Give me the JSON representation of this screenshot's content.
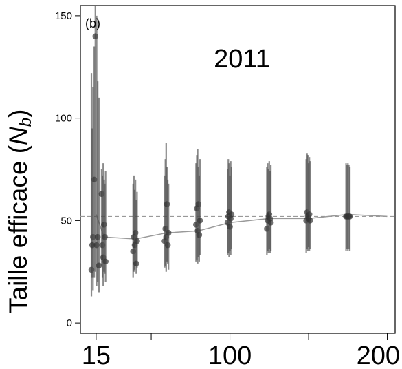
{
  "chart_data": {
    "type": "scatter",
    "panel_label": "(b)",
    "annotation": "2011",
    "ylabel": {
      "prefix": "Taille efficace (",
      "symbol": "N",
      "subscript": "b",
      "suffix": ")"
    },
    "xlim": [
      5,
      205
    ],
    "ylim": [
      -5,
      155
    ],
    "x_ticks": [
      15,
      50,
      100,
      150,
      200
    ],
    "x_tick_labels": [
      "15",
      "",
      "100",
      "",
      "200"
    ],
    "y_ticks": [
      0,
      50,
      100,
      150
    ],
    "y_tick_labels": [
      "0",
      "50",
      "100",
      "150"
    ],
    "reference_line": 52,
    "mean_line": {
      "x": [
        15,
        20,
        40,
        60,
        80,
        100,
        125,
        150,
        175,
        200
      ],
      "y": [
        53,
        42,
        41,
        44,
        45,
        49,
        51,
        51,
        53,
        52
      ]
    },
    "groups": [
      {
        "x": 15,
        "points": [
          {
            "dx": -3.0,
            "y": 26,
            "lo": 13,
            "hi": 122
          },
          {
            "dx": -2.0,
            "y": 42,
            "lo": 16,
            "hi": 115
          },
          {
            "dx": -1.2,
            "y": 70,
            "lo": 22,
            "hi": 135
          },
          {
            "dx": -0.5,
            "y": 140,
            "lo": 25,
            "hi": 155
          },
          {
            "dx": 0.3,
            "y": 38,
            "lo": 18,
            "hi": 150
          },
          {
            "dx": 1.0,
            "y": 42,
            "lo": 20,
            "hi": 118
          },
          {
            "dx": 1.8,
            "y": 28,
            "lo": 15,
            "hi": 110
          },
          {
            "dx": -2.5,
            "y": 38,
            "lo": 22,
            "hi": 95
          }
        ]
      },
      {
        "x": 20,
        "points": [
          {
            "dx": -1.5,
            "y": 63,
            "lo": 28,
            "hi": 75
          },
          {
            "dx": -1.0,
            "y": 38,
            "lo": 22,
            "hi": 72
          },
          {
            "dx": -0.5,
            "y": 32,
            "lo": 18,
            "hi": 78
          },
          {
            "dx": 0.0,
            "y": 48,
            "lo": 25,
            "hi": 70
          },
          {
            "dx": 0.5,
            "y": 42,
            "lo": 24,
            "hi": 68
          },
          {
            "dx": 1.0,
            "y": 30,
            "lo": 20,
            "hi": 74
          }
        ]
      },
      {
        "x": 40,
        "points": [
          {
            "dx": -1.5,
            "y": 35,
            "lo": 22,
            "hi": 68
          },
          {
            "dx": -1.0,
            "y": 42,
            "lo": 25,
            "hi": 72
          },
          {
            "dx": -0.5,
            "y": 38,
            "lo": 26,
            "hi": 65
          },
          {
            "dx": 0.0,
            "y": 44,
            "lo": 28,
            "hi": 70
          },
          {
            "dx": 0.5,
            "y": 29,
            "lo": 24,
            "hi": 60
          },
          {
            "dx": 1.0,
            "y": 40,
            "lo": 27,
            "hi": 64
          }
        ]
      },
      {
        "x": 60,
        "points": [
          {
            "dx": -1.5,
            "y": 40,
            "lo": 27,
            "hi": 72
          },
          {
            "dx": -1.0,
            "y": 46,
            "lo": 28,
            "hi": 80
          },
          {
            "dx": -0.5,
            "y": 42,
            "lo": 25,
            "hi": 88
          },
          {
            "dx": 0.0,
            "y": 58,
            "lo": 30,
            "hi": 76
          },
          {
            "dx": 0.5,
            "y": 38,
            "lo": 29,
            "hi": 70
          },
          {
            "dx": 1.0,
            "y": 44,
            "lo": 26,
            "hi": 68
          }
        ]
      },
      {
        "x": 80,
        "points": [
          {
            "dx": -1.5,
            "y": 48,
            "lo": 30,
            "hi": 78
          },
          {
            "dx": -1.0,
            "y": 56,
            "lo": 31,
            "hi": 82
          },
          {
            "dx": -0.5,
            "y": 45,
            "lo": 29,
            "hi": 85
          },
          {
            "dx": 0.0,
            "y": 58,
            "lo": 32,
            "hi": 76
          },
          {
            "dx": 0.5,
            "y": 43,
            "lo": 30,
            "hi": 72
          },
          {
            "dx": 1.0,
            "y": 50,
            "lo": 33,
            "hi": 80
          }
        ]
      },
      {
        "x": 100,
        "points": [
          {
            "dx": -1.5,
            "y": 49,
            "lo": 33,
            "hi": 75
          },
          {
            "dx": -1.0,
            "y": 52,
            "lo": 34,
            "hi": 80
          },
          {
            "dx": -0.5,
            "y": 54,
            "lo": 32,
            "hi": 78
          },
          {
            "dx": 0.0,
            "y": 47,
            "lo": 35,
            "hi": 72
          },
          {
            "dx": 0.5,
            "y": 51,
            "lo": 33,
            "hi": 79
          },
          {
            "dx": 1.0,
            "y": 53,
            "lo": 36,
            "hi": 76
          }
        ]
      },
      {
        "x": 125,
        "points": [
          {
            "dx": -1.5,
            "y": 46,
            "lo": 33,
            "hi": 76
          },
          {
            "dx": -1.0,
            "y": 50,
            "lo": 35,
            "hi": 78
          },
          {
            "dx": -0.5,
            "y": 52,
            "lo": 34,
            "hi": 75
          },
          {
            "dx": 0.0,
            "y": 53,
            "lo": 36,
            "hi": 79
          },
          {
            "dx": 0.5,
            "y": 51,
            "lo": 34,
            "hi": 74
          },
          {
            "dx": 1.0,
            "y": 49,
            "lo": 35,
            "hi": 77
          }
        ]
      },
      {
        "x": 150,
        "points": [
          {
            "dx": -1.5,
            "y": 50,
            "lo": 34,
            "hi": 80
          },
          {
            "dx": -1.0,
            "y": 54,
            "lo": 36,
            "hi": 83
          },
          {
            "dx": -0.5,
            "y": 52,
            "lo": 35,
            "hi": 82
          },
          {
            "dx": 0.0,
            "y": 51,
            "lo": 37,
            "hi": 78
          },
          {
            "dx": 0.5,
            "y": 53,
            "lo": 35,
            "hi": 81
          },
          {
            "dx": 1.0,
            "y": 50,
            "lo": 36,
            "hi": 79
          }
        ]
      },
      {
        "x": 175,
        "points": [
          {
            "dx": -1.2,
            "y": 52,
            "lo": 35,
            "hi": 78
          },
          {
            "dx": -0.6,
            "y": 52,
            "lo": 36,
            "hi": 77
          },
          {
            "dx": 0.0,
            "y": 52,
            "lo": 35,
            "hi": 78
          },
          {
            "dx": 0.6,
            "y": 52,
            "lo": 36,
            "hi": 77
          },
          {
            "dx": 1.2,
            "y": 52,
            "lo": 35,
            "hi": 76
          }
        ]
      }
    ],
    "colors": {
      "axis": "#000000",
      "points": "#333333",
      "errorbars": "#4d4d4d",
      "mean_line": "#999999",
      "reference_line": "#999999"
    }
  }
}
